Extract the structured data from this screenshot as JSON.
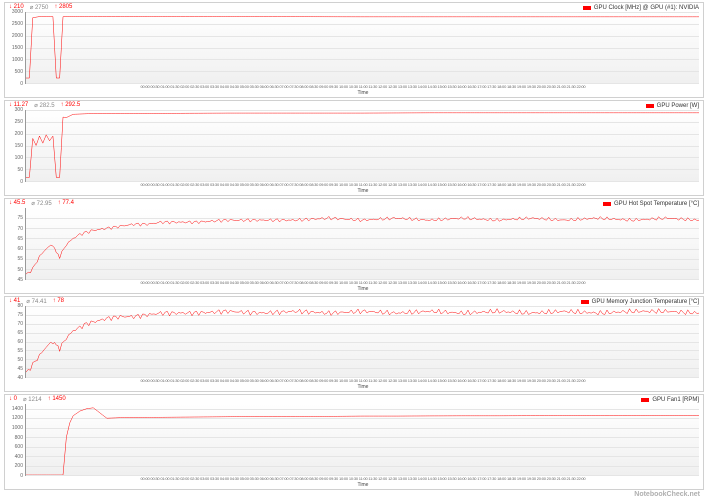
{
  "global": {
    "line_color": "#ff0000",
    "line_width": 1,
    "grid_color": "#e5e5e5",
    "bg_gradient_top": "#ffffff",
    "bg_gradient_bottom": "#f0f0f0",
    "axis_color": "#999999",
    "x_axis_label": "Time",
    "x_ticks_label": "00:00 00:30 01:00 01:30 02:00 02:30 03:00 03:30 04:00 04:30 05:00 05:30 06:00 06:30 07:00 07:30 08:00 08:30 09:00 09:30 10:00 10:30 11:00 11:30 12:00 12:30 13:00 13:30 14:00 14:30 15:00 15:30 16:00 16:30 17:00 17:30 18:00 18:30 19:00 19:30 20:00 20:30 21:00 21:30 22:00",
    "watermark": "NotebookCheck.net"
  },
  "charts": [
    {
      "id": "gpu-clock",
      "legend": "GPU Clock [MHz] @ GPU (#1): NVIDIA",
      "stats": {
        "down": "210",
        "avg": "2750",
        "up": "2805"
      },
      "ymin": 0,
      "ymax": 3000,
      "yticks": [
        0,
        500,
        1000,
        1500,
        2000,
        2500,
        3000
      ],
      "series": [
        [
          0,
          210
        ],
        [
          0.5,
          210
        ],
        [
          1,
          2760
        ],
        [
          2,
          2805
        ],
        [
          3,
          2805
        ],
        [
          4,
          2805
        ],
        [
          4.5,
          210
        ],
        [
          5,
          210
        ],
        [
          5.5,
          2800
        ],
        [
          7,
          2800
        ],
        [
          10,
          2800
        ],
        [
          15,
          2800
        ],
        [
          20,
          2800
        ],
        [
          30,
          2800
        ],
        [
          40,
          2800
        ],
        [
          50,
          2795
        ],
        [
          60,
          2795
        ],
        [
          70,
          2795
        ],
        [
          80,
          2795
        ],
        [
          90,
          2795
        ],
        [
          100,
          2795
        ]
      ]
    },
    {
      "id": "gpu-power",
      "legend": "GPU Power [W]",
      "stats": {
        "down": "11.27",
        "avg": "282.5",
        "up": "292.5"
      },
      "ymin": 0,
      "ymax": 300,
      "yticks": [
        0,
        50,
        100,
        150,
        200,
        250,
        300
      ],
      "series": [
        [
          0,
          15
        ],
        [
          0.5,
          15
        ],
        [
          1,
          180
        ],
        [
          1.5,
          150
        ],
        [
          2,
          190
        ],
        [
          2.5,
          160
        ],
        [
          3,
          195
        ],
        [
          3.5,
          170
        ],
        [
          4,
          190
        ],
        [
          4.5,
          15
        ],
        [
          5,
          15
        ],
        [
          5.5,
          270
        ],
        [
          6,
          268
        ],
        [
          7,
          282
        ],
        [
          8,
          283
        ],
        [
          10,
          285
        ],
        [
          15,
          286
        ],
        [
          20,
          286
        ],
        [
          30,
          287
        ],
        [
          40,
          287
        ],
        [
          50,
          287
        ],
        [
          60,
          288
        ],
        [
          70,
          288
        ],
        [
          80,
          288
        ],
        [
          90,
          288
        ],
        [
          100,
          288
        ]
      ]
    },
    {
      "id": "gpu-hotspot",
      "legend": "GPU Hot Spot Temperature [°C]",
      "stats": {
        "down": "45.5",
        "avg": "72.95",
        "up": "77.4"
      },
      "ymin": 45,
      "ymax": 80,
      "yticks": [
        45,
        50,
        55,
        60,
        65,
        70,
        75
      ],
      "series": [
        [
          0,
          47
        ],
        [
          1,
          50
        ],
        [
          2,
          56
        ],
        [
          3,
          60
        ],
        [
          4,
          62
        ],
        [
          4.5,
          58
        ],
        [
          5,
          56
        ],
        [
          6,
          62
        ],
        [
          7,
          65
        ],
        [
          8,
          67
        ],
        [
          9,
          68
        ],
        [
          10,
          69
        ],
        [
          12,
          70
        ],
        [
          14,
          71
        ],
        [
          16,
          72
        ],
        [
          18,
          72
        ],
        [
          20,
          73
        ],
        [
          25,
          73
        ],
        [
          30,
          74
        ],
        [
          35,
          74
        ],
        [
          40,
          74
        ],
        [
          45,
          75
        ],
        [
          50,
          74
        ],
        [
          55,
          75
        ],
        [
          60,
          74
        ],
        [
          65,
          75
        ],
        [
          70,
          74
        ],
        [
          75,
          75
        ],
        [
          80,
          74
        ],
        [
          85,
          75
        ],
        [
          90,
          74
        ],
        [
          95,
          75
        ],
        [
          100,
          74
        ]
      ],
      "noise": 1.2
    },
    {
      "id": "gpu-mem-junction",
      "legend": "GPU Memory Junction Temperature [°C]",
      "stats": {
        "down": "41",
        "avg": "74.41",
        "up": "78"
      },
      "ymin": 40,
      "ymax": 80,
      "yticks": [
        40,
        45,
        50,
        55,
        60,
        65,
        70,
        75,
        80
      ],
      "series": [
        [
          0,
          42
        ],
        [
          1,
          47
        ],
        [
          2,
          52
        ],
        [
          3,
          57
        ],
        [
          4,
          60
        ],
        [
          4.5,
          58
        ],
        [
          5,
          56
        ],
        [
          6,
          62
        ],
        [
          7,
          66
        ],
        [
          8,
          68
        ],
        [
          9,
          70
        ],
        [
          10,
          71
        ],
        [
          12,
          73
        ],
        [
          14,
          74
        ],
        [
          16,
          74
        ],
        [
          18,
          75
        ],
        [
          20,
          76
        ],
        [
          25,
          76
        ],
        [
          30,
          77
        ],
        [
          35,
          76
        ],
        [
          40,
          77
        ],
        [
          45,
          76
        ],
        [
          50,
          77
        ],
        [
          55,
          76
        ],
        [
          60,
          77
        ],
        [
          65,
          76
        ],
        [
          70,
          77
        ],
        [
          75,
          76
        ],
        [
          80,
          77
        ],
        [
          85,
          76
        ],
        [
          90,
          77
        ],
        [
          95,
          77
        ],
        [
          100,
          76
        ]
      ],
      "noise": 2.0
    },
    {
      "id": "gpu-fan",
      "legend": "GPU Fan1 [RPM]",
      "stats": {
        "down": "0",
        "avg": "1214",
        "up": "1450"
      },
      "ymin": 0,
      "ymax": 1500,
      "yticks": [
        0,
        200,
        400,
        600,
        800,
        1000,
        1200,
        1400
      ],
      "series": [
        [
          0,
          0
        ],
        [
          3,
          0
        ],
        [
          4,
          0
        ],
        [
          5.5,
          0
        ],
        [
          6,
          800
        ],
        [
          6.5,
          1100
        ],
        [
          7,
          1250
        ],
        [
          8,
          1350
        ],
        [
          9,
          1400
        ],
        [
          10,
          1420
        ],
        [
          12,
          1200
        ],
        [
          14,
          1210
        ],
        [
          16,
          1215
        ],
        [
          18,
          1220
        ],
        [
          20,
          1220
        ],
        [
          25,
          1225
        ],
        [
          30,
          1230
        ],
        [
          35,
          1235
        ],
        [
          40,
          1240
        ],
        [
          45,
          1240
        ],
        [
          50,
          1245
        ],
        [
          55,
          1245
        ],
        [
          60,
          1248
        ],
        [
          65,
          1250
        ],
        [
          70,
          1250
        ],
        [
          75,
          1252
        ],
        [
          80,
          1253
        ],
        [
          85,
          1255
        ],
        [
          90,
          1255
        ],
        [
          95,
          1256
        ],
        [
          100,
          1257
        ]
      ]
    }
  ]
}
